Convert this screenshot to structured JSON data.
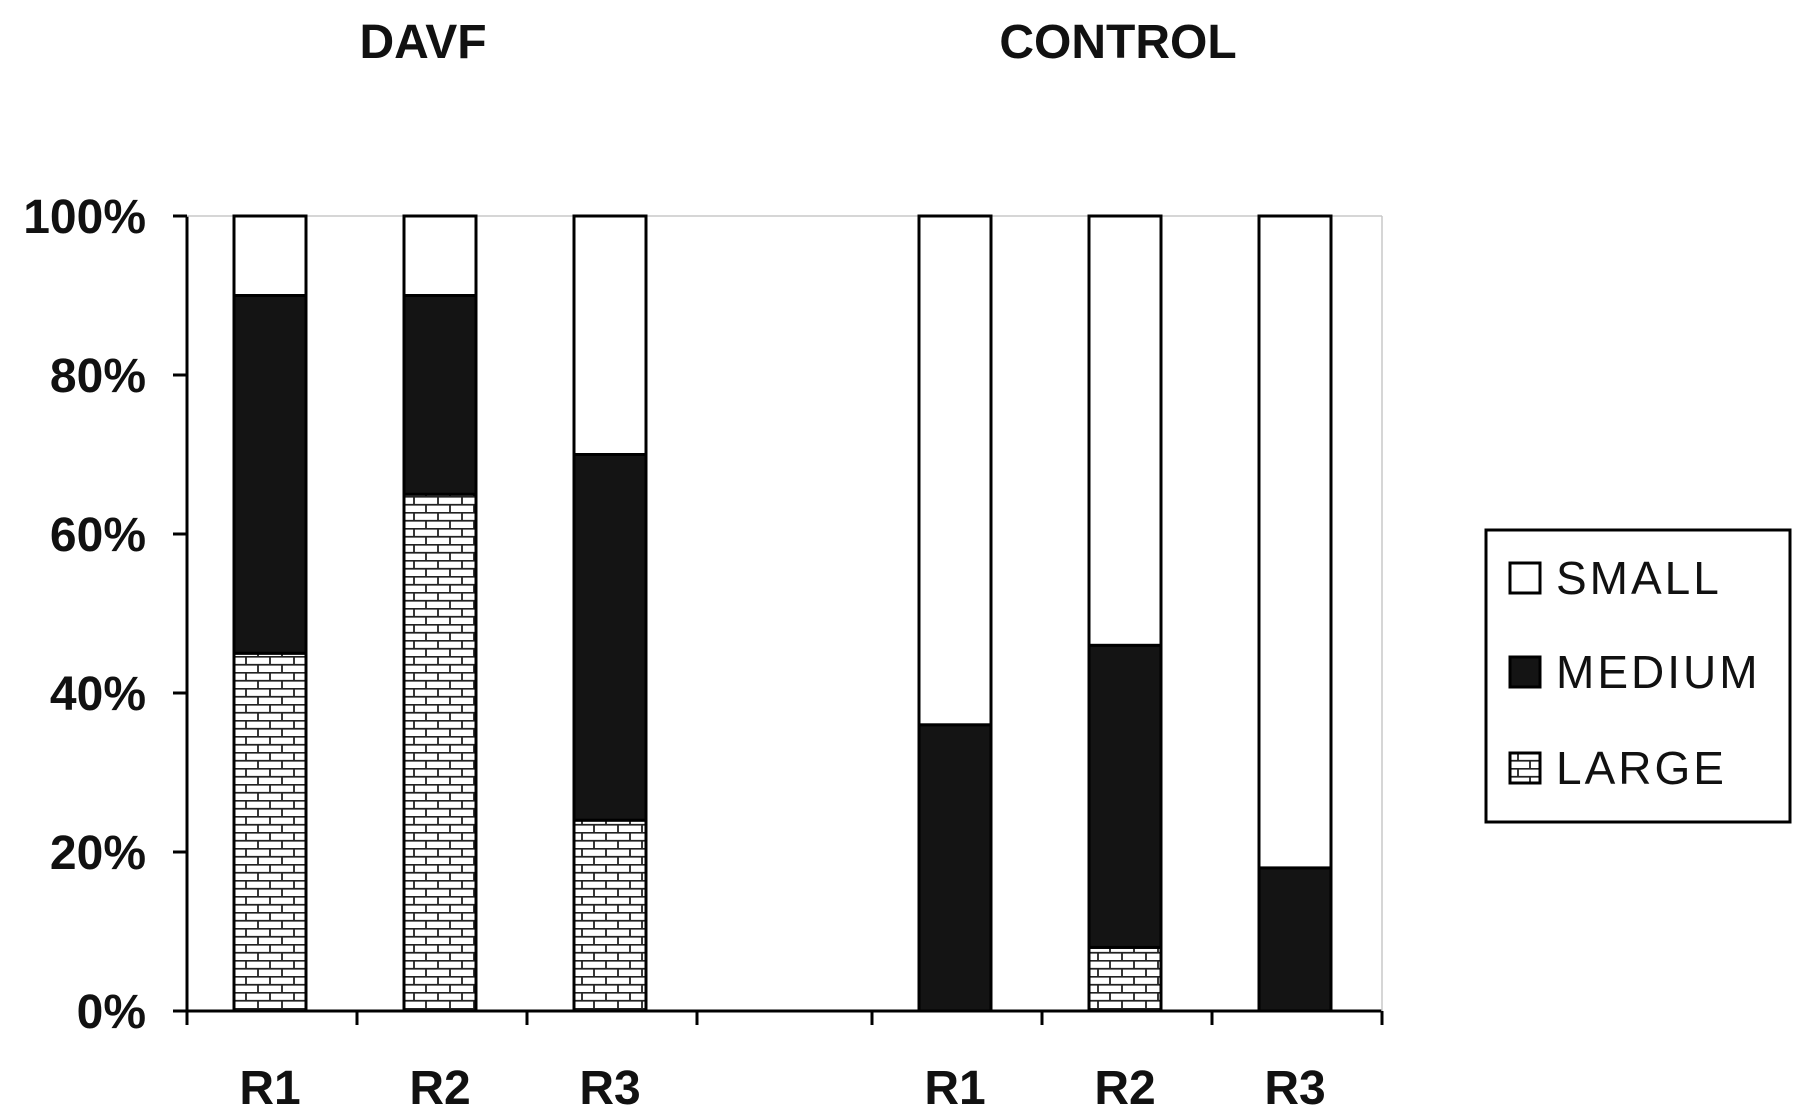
{
  "chart_data": {
    "type": "bar",
    "stacked": true,
    "percent": true,
    "groups": [
      {
        "title": "DAVF",
        "categories": [
          "R1",
          "R2",
          "R3"
        ],
        "series": [
          {
            "name": "LARGE",
            "values": [
              45,
              65,
              24
            ]
          },
          {
            "name": "MEDIUM",
            "values": [
              45,
              25,
              46
            ]
          },
          {
            "name": "SMALL",
            "values": [
              10,
              10,
              30
            ]
          }
        ]
      },
      {
        "title": "CONTROL",
        "categories": [
          "R1",
          "R2",
          "R3"
        ],
        "series": [
          {
            "name": "LARGE",
            "values": [
              0,
              8,
              0
            ]
          },
          {
            "name": "MEDIUM",
            "values": [
              36,
              38,
              18
            ]
          },
          {
            "name": "SMALL",
            "values": [
              64,
              54,
              82
            ]
          }
        ]
      }
    ],
    "yticks": [
      "0%",
      "20%",
      "40%",
      "60%",
      "80%",
      "100%"
    ],
    "ylim": [
      0,
      100
    ],
    "grid": false,
    "legend": {
      "position": "right",
      "entries": [
        {
          "name": "SMALL",
          "fill": "white"
        },
        {
          "name": "MEDIUM",
          "fill": "black"
        },
        {
          "name": "LARGE",
          "fill": "brick"
        }
      ]
    },
    "colors": {
      "small": "#ffffff",
      "medium": "#141414",
      "large_pattern": "brick",
      "outline": "#000000"
    }
  }
}
